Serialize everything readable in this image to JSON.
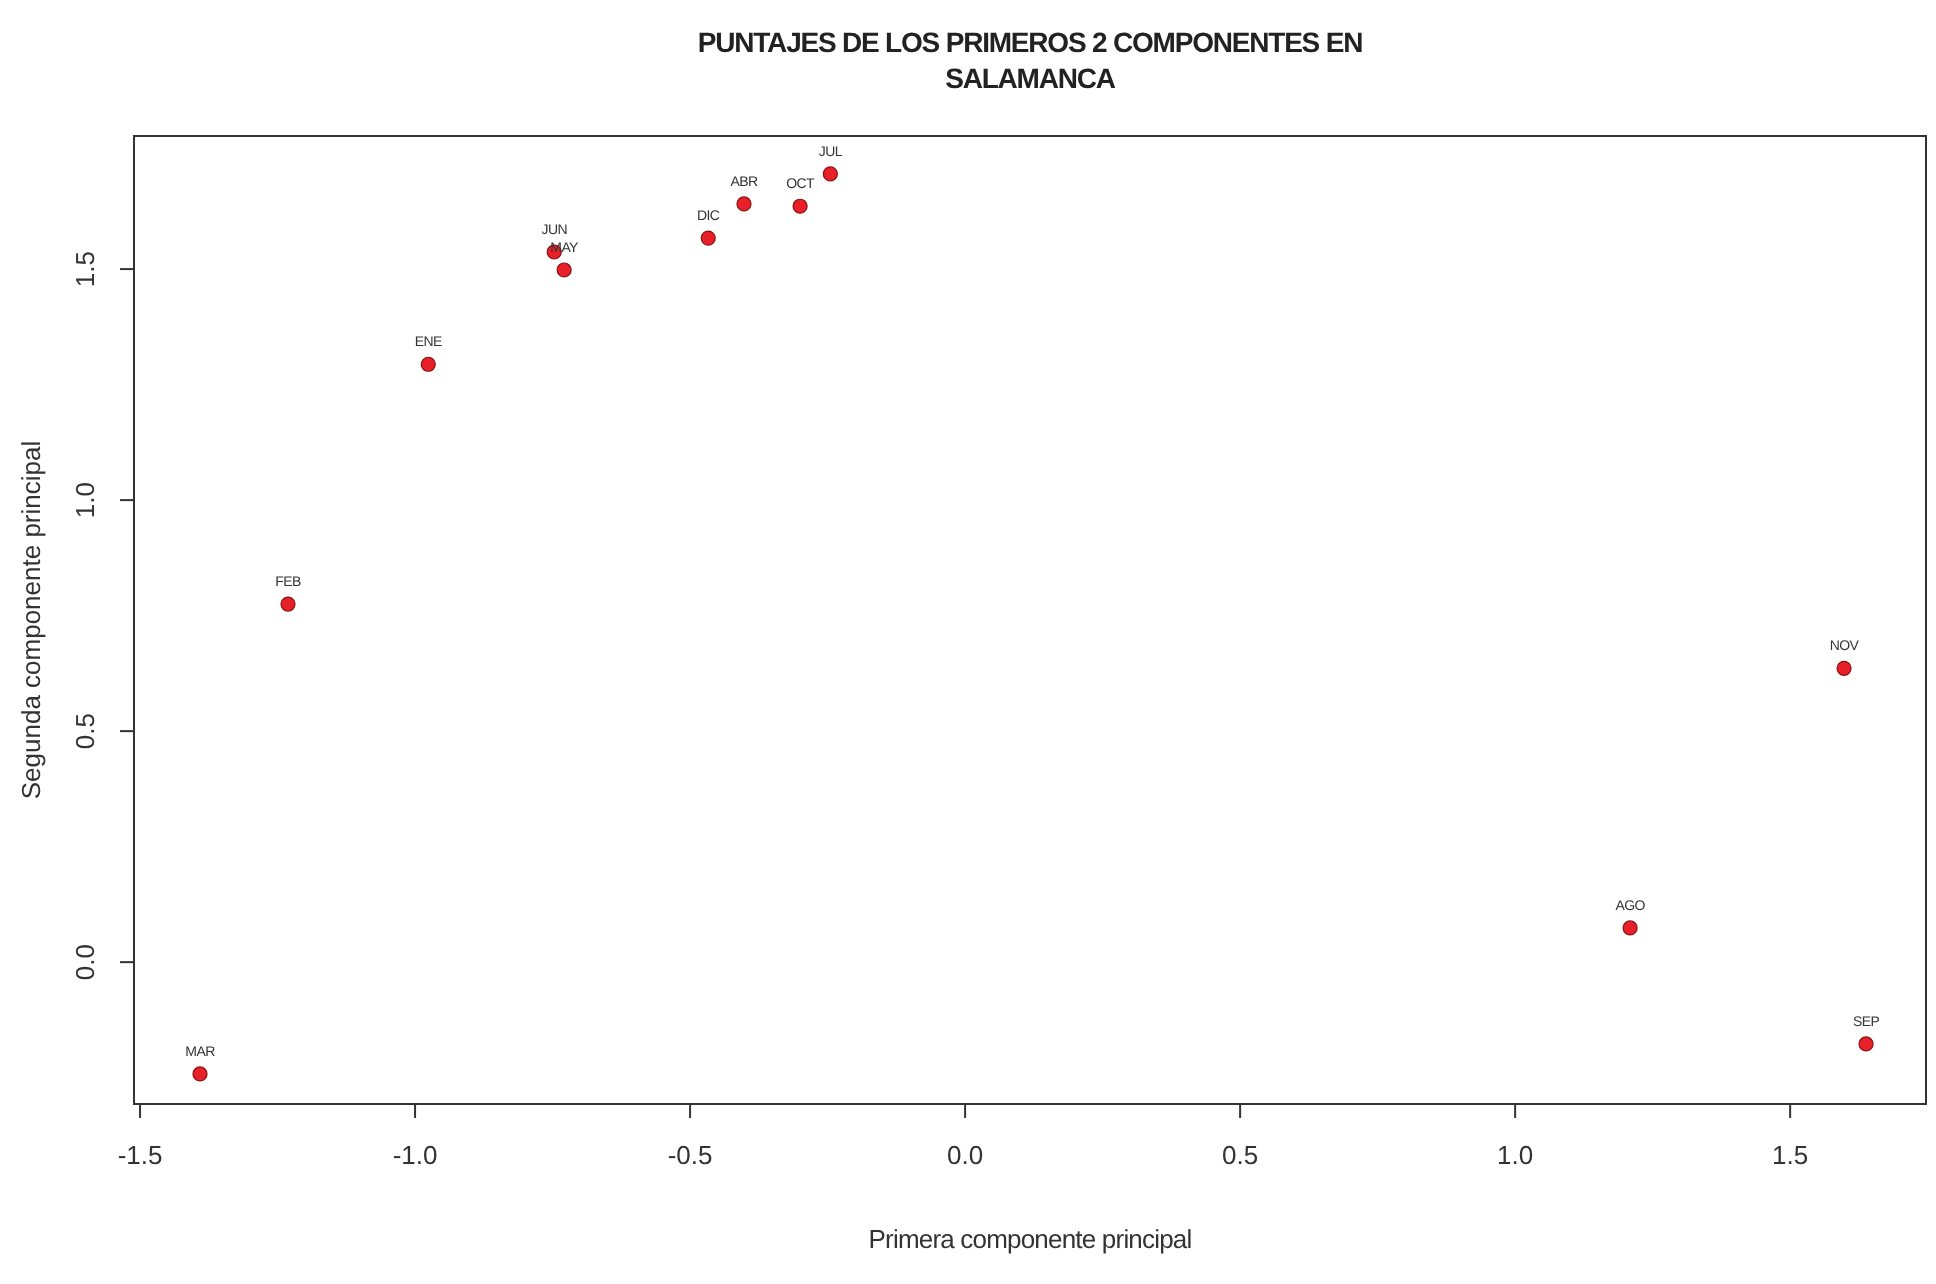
{
  "chart_data": {
    "type": "scatter",
    "title": "PUNTAJES DE LOS PRIMEROS 2 COMPONENTES EN SALAMANCA",
    "xlabel": "Primera componente principal",
    "ylabel": "Segunda componente principal",
    "x": [
      -1.391,
      -1.231,
      -0.976,
      -0.747,
      -0.729,
      -0.467,
      -0.402,
      -0.3,
      -0.245,
      1.598,
      1.209,
      1.638
    ],
    "series": [
      {
        "color": "#e8202a",
        "values": [
          -0.242,
          0.775,
          1.294,
          1.537,
          1.498,
          1.567,
          1.641,
          1.636,
          1.706,
          0.636,
          0.074,
          -0.177
        ]
      }
    ],
    "annotations": [
      {
        "text": "MAR",
        "x": -1.391,
        "y": -0.242
      },
      {
        "text": "FEB",
        "x": -1.231,
        "y": 0.775
      },
      {
        "text": "ENE",
        "x": -0.976,
        "y": 1.294
      },
      {
        "text": "JUN",
        "x": -0.747,
        "y": 1.537
      },
      {
        "text": "MAY",
        "x": -0.729,
        "y": 1.498
      },
      {
        "text": "DIC",
        "x": -0.467,
        "y": 1.567
      },
      {
        "text": "ABR",
        "x": -0.402,
        "y": 1.641
      },
      {
        "text": "OCT",
        "x": -0.3,
        "y": 1.636
      },
      {
        "text": "JUL",
        "x": -0.245,
        "y": 1.706
      },
      {
        "text": "NOV",
        "x": 1.598,
        "y": 0.636
      },
      {
        "text": "AGO",
        "x": 1.209,
        "y": 0.074
      },
      {
        "text": "SEP",
        "x": 1.638,
        "y": -0.177
      }
    ],
    "xlim": [
      -1.511,
      1.747
    ],
    "ylim": [
      -0.307,
      1.788
    ],
    "xticks": [
      {
        "value": -1.5,
        "label": "-1.5"
      },
      {
        "value": -1,
        "label": "-1.0"
      },
      {
        "value": -0.5,
        "label": "-0.5"
      },
      {
        "value": 0,
        "label": "0.0"
      },
      {
        "value": 0.5,
        "label": "0.5"
      },
      {
        "value": 1,
        "label": "1.0"
      },
      {
        "value": 1.5,
        "label": "1.5"
      }
    ],
    "yticks": [
      {
        "value": 0,
        "label": "0.0"
      },
      {
        "value": 0.5,
        "label": "0.5"
      },
      {
        "value": 1,
        "label": "1.0"
      },
      {
        "value": 1.5,
        "label": "1.5"
      }
    ],
    "grid": false,
    "marker": "circle"
  }
}
